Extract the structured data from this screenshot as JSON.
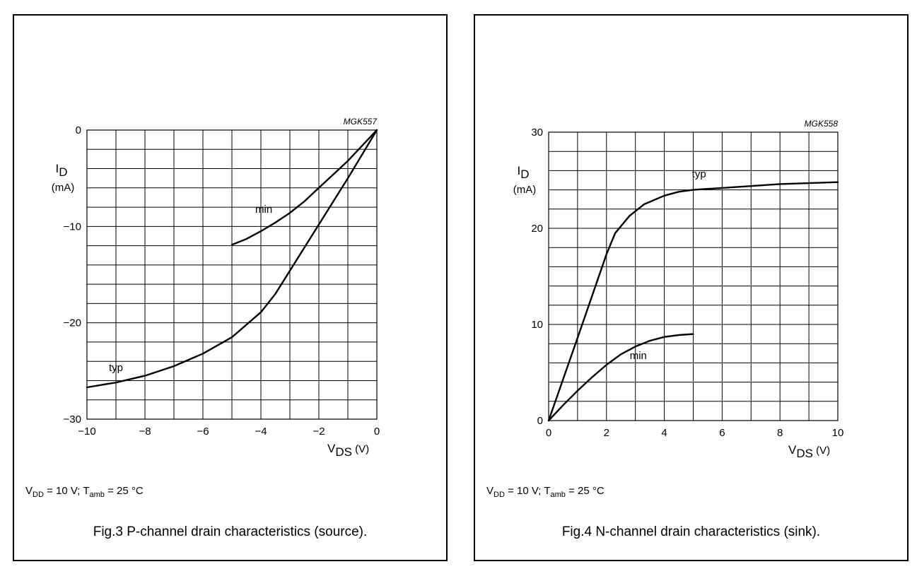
{
  "chart_data": [
    {
      "type": "line",
      "id": "MGK557",
      "code": "MGK557",
      "xlim": [
        -10,
        0
      ],
      "ylim": [
        -30,
        0
      ],
      "xticks": [
        -10,
        -8,
        -6,
        -4,
        -2,
        0
      ],
      "yticks": [
        -30,
        -20,
        -10,
        0
      ],
      "xtick_labels": [
        "−10",
        "−8",
        "−6",
        "−4",
        "−2",
        "0"
      ],
      "ytick_labels": [
        "−30",
        "−20",
        "−10",
        "0"
      ],
      "x_grid_step": 1,
      "y_grid_step": 2,
      "grid": true,
      "xlabel": {
        "main": "V",
        "sub": "DS",
        "unit": " (V)"
      },
      "ylabel": {
        "main": "I",
        "sub": "D",
        "unit": "(mA)"
      },
      "series": [
        {
          "name": "typ",
          "x": [
            -10,
            -9,
            -8,
            -7,
            -6,
            -5,
            -4,
            -3.5,
            -3,
            -2.5,
            -2,
            -1.5,
            -1,
            -0.5,
            0
          ],
          "y": [
            -26.7,
            -26.2,
            -25.5,
            -24.5,
            -23.2,
            -21.5,
            -18.9,
            -17.0,
            -14.6,
            -12.2,
            -9.8,
            -7.4,
            -5.0,
            -2.5,
            0
          ]
        },
        {
          "name": "min",
          "x": [
            -5,
            -4.5,
            -4,
            -3.5,
            -3,
            -2.5,
            -2,
            -1.5,
            -1,
            -0.5,
            0
          ],
          "y": [
            -11.9,
            -11.3,
            -10.5,
            -9.6,
            -8.6,
            -7.4,
            -6.0,
            -4.6,
            -3.2,
            -1.6,
            0
          ]
        }
      ],
      "annotations": [
        {
          "text": "typ",
          "x": -9.0,
          "y": -25.0
        },
        {
          "text": "min",
          "x": -3.9,
          "y": -8.6
        }
      ],
      "conditions": {
        "v": "V",
        "v_sub": "DD",
        "v_rest": " = 10 V; T",
        "t_sub": "amb",
        "t_rest": " = 25 °C"
      },
      "caption": "Fig.3  P-channel drain characteristics (source)."
    },
    {
      "type": "line",
      "id": "MGK558",
      "code": "MGK558",
      "xlim": [
        0,
        10
      ],
      "ylim": [
        0,
        30
      ],
      "xticks": [
        0,
        2,
        4,
        6,
        8,
        10
      ],
      "yticks": [
        0,
        10,
        20,
        30
      ],
      "xtick_labels": [
        "0",
        "2",
        "4",
        "6",
        "8",
        "10"
      ],
      "ytick_labels": [
        "0",
        "10",
        "20",
        "30"
      ],
      "x_grid_step": 1,
      "y_grid_step": 2,
      "grid": true,
      "xlabel": {
        "main": "V",
        "sub": "DS",
        "unit": " (V)"
      },
      "ylabel": {
        "main": "I",
        "sub": "D",
        "unit": "(mA)"
      },
      "series": [
        {
          "name": "typ",
          "x": [
            0,
            1,
            2,
            2.3,
            2.8,
            3.3,
            4,
            4.5,
            5,
            5.5,
            6,
            7,
            8,
            9,
            10
          ],
          "y": [
            0,
            8.6,
            17.3,
            19.5,
            21.3,
            22.5,
            23.4,
            23.8,
            24.0,
            24.1,
            24.2,
            24.4,
            24.6,
            24.7,
            24.8
          ]
        },
        {
          "name": "min",
          "x": [
            0,
            0.5,
            1,
            1.5,
            2,
            2.5,
            3,
            3.5,
            4,
            4.5,
            5
          ],
          "y": [
            0,
            1.6,
            3.1,
            4.5,
            5.8,
            6.9,
            7.7,
            8.3,
            8.7,
            8.9,
            9.0
          ]
        }
      ],
      "annotations": [
        {
          "text": "typ",
          "x": 5.2,
          "y": 25.3
        },
        {
          "text": "min",
          "x": 3.1,
          "y": 6.4
        }
      ],
      "conditions": {
        "v": "V",
        "v_sub": "DD",
        "v_rest": " = 10 V; T",
        "t_sub": "amb",
        "t_rest": " = 25 °C"
      },
      "caption": "Fig.4  N-channel drain characteristics (sink)."
    }
  ]
}
